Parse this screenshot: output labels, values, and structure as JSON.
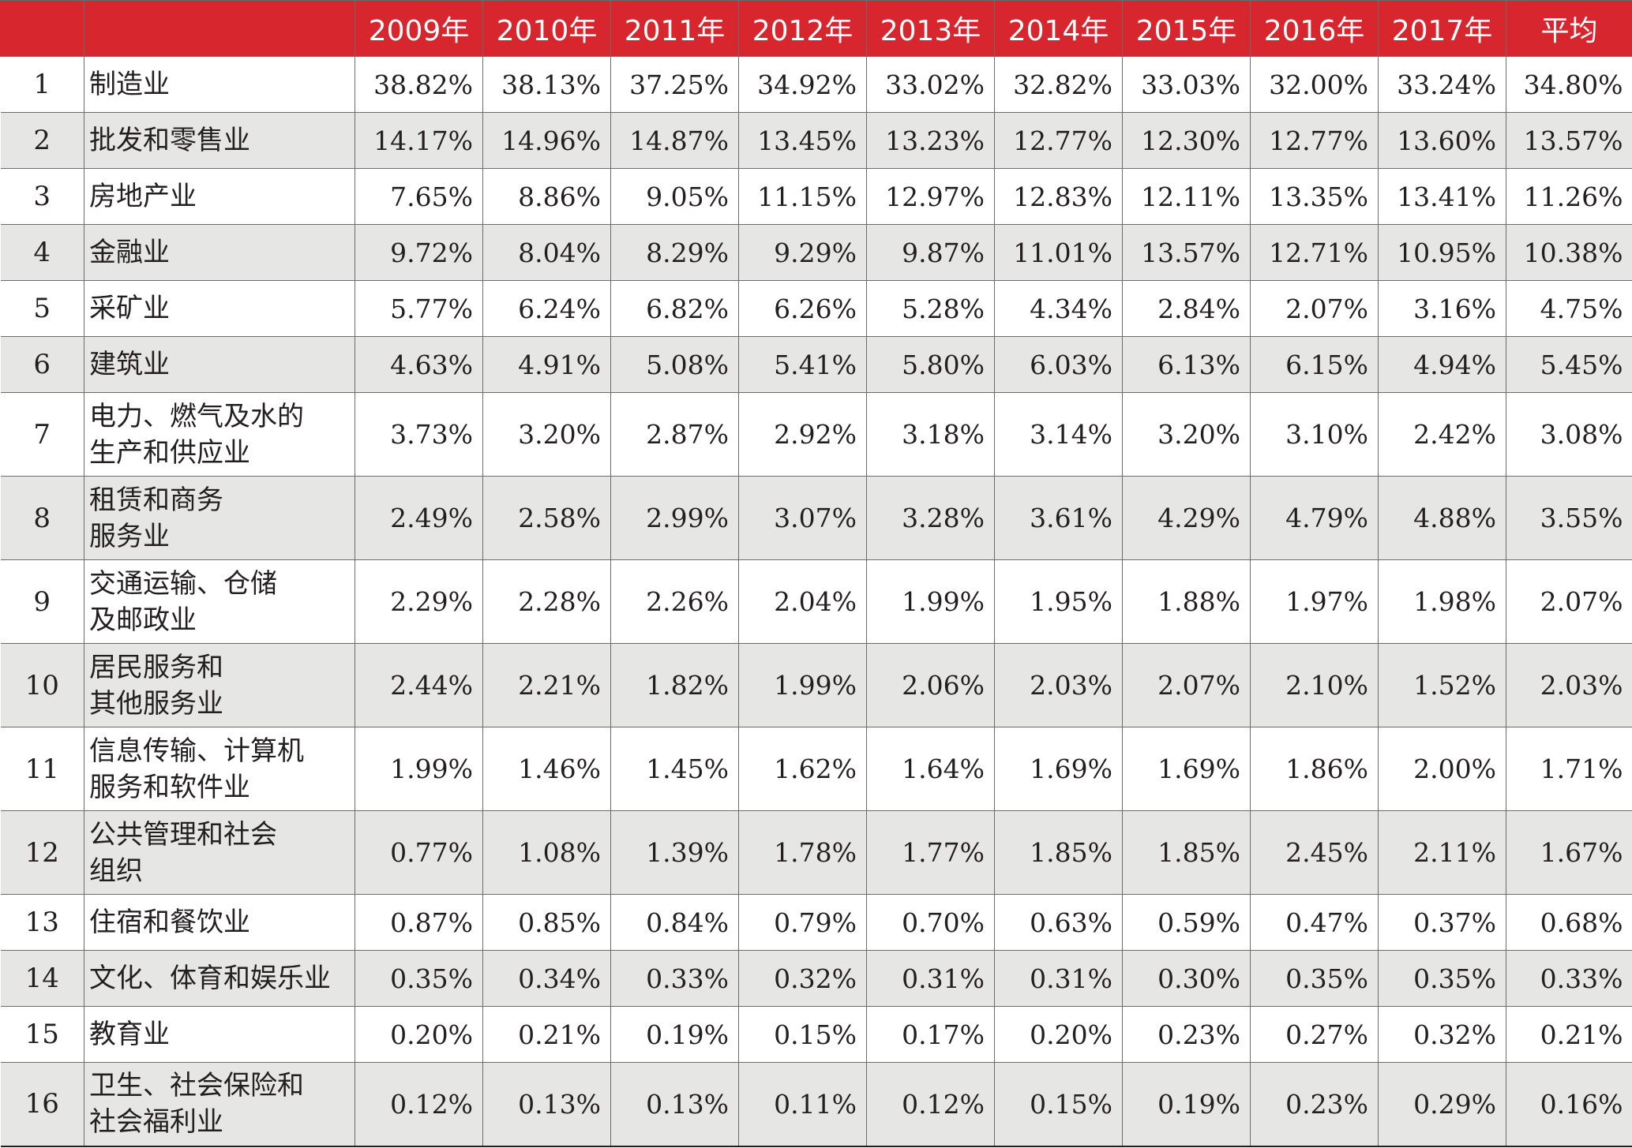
{
  "table": {
    "header": {
      "rank": "",
      "name": "",
      "years": [
        "2009年",
        "2010年",
        "2011年",
        "2012年",
        "2013年",
        "2014年",
        "2015年",
        "2016年",
        "2017年"
      ],
      "average": "平均"
    },
    "rows": [
      {
        "rank": "1",
        "name": [
          "制造业"
        ],
        "values": [
          "38.82%",
          "38.13%",
          "37.25%",
          "34.92%",
          "33.02%",
          "32.82%",
          "33.03%",
          "32.00%",
          "33.24%"
        ],
        "average": "34.80%"
      },
      {
        "rank": "2",
        "name": [
          "批发和零售业"
        ],
        "values": [
          "14.17%",
          "14.96%",
          "14.87%",
          "13.45%",
          "13.23%",
          "12.77%",
          "12.30%",
          "12.77%",
          "13.60%"
        ],
        "average": "13.57%"
      },
      {
        "rank": "3",
        "name": [
          "房地产业"
        ],
        "values": [
          "7.65%",
          "8.86%",
          "9.05%",
          "11.15%",
          "12.97%",
          "12.83%",
          "12.11%",
          "13.35%",
          "13.41%"
        ],
        "average": "11.26%"
      },
      {
        "rank": "4",
        "name": [
          "金融业"
        ],
        "values": [
          "9.72%",
          "8.04%",
          "8.29%",
          "9.29%",
          "9.87%",
          "11.01%",
          "13.57%",
          "12.71%",
          "10.95%"
        ],
        "average": "10.38%"
      },
      {
        "rank": "5",
        "name": [
          "采矿业"
        ],
        "values": [
          "5.77%",
          "6.24%",
          "6.82%",
          "6.26%",
          "5.28%",
          "4.34%",
          "2.84%",
          "2.07%",
          "3.16%"
        ],
        "average": "4.75%"
      },
      {
        "rank": "6",
        "name": [
          "建筑业"
        ],
        "values": [
          "4.63%",
          "4.91%",
          "5.08%",
          "5.41%",
          "5.80%",
          "6.03%",
          "6.13%",
          "6.15%",
          "4.94%"
        ],
        "average": "5.45%"
      },
      {
        "rank": "7",
        "name": [
          "电力、燃气及水的",
          "生产和供应业"
        ],
        "values": [
          "3.73%",
          "3.20%",
          "2.87%",
          "2.92%",
          "3.18%",
          "3.14%",
          "3.20%",
          "3.10%",
          "2.42%"
        ],
        "average": "3.08%"
      },
      {
        "rank": "8",
        "name": [
          "租赁和商务",
          "服务业"
        ],
        "values": [
          "2.49%",
          "2.58%",
          "2.99%",
          "3.07%",
          "3.28%",
          "3.61%",
          "4.29%",
          "4.79%",
          "4.88%"
        ],
        "average": "3.55%"
      },
      {
        "rank": "9",
        "name": [
          "交通运输、仓储",
          "及邮政业"
        ],
        "values": [
          "2.29%",
          "2.28%",
          "2.26%",
          "2.04%",
          "1.99%",
          "1.95%",
          "1.88%",
          "1.97%",
          "1.98%"
        ],
        "average": "2.07%"
      },
      {
        "rank": "10",
        "name": [
          "居民服务和",
          "其他服务业"
        ],
        "values": [
          "2.44%",
          "2.21%",
          "1.82%",
          "1.99%",
          "2.06%",
          "2.03%",
          "2.07%",
          "2.10%",
          "1.52%"
        ],
        "average": "2.03%"
      },
      {
        "rank": "11",
        "name": [
          "信息传输、计算机",
          "服务和软件业"
        ],
        "values": [
          "1.99%",
          "1.46%",
          "1.45%",
          "1.62%",
          "1.64%",
          "1.69%",
          "1.69%",
          "1.86%",
          "2.00%"
        ],
        "average": "1.71%"
      },
      {
        "rank": "12",
        "name": [
          "公共管理和社会",
          "组织"
        ],
        "values": [
          "0.77%",
          "1.08%",
          "1.39%",
          "1.78%",
          "1.77%",
          "1.85%",
          "1.85%",
          "2.45%",
          "2.11%"
        ],
        "average": "1.67%"
      },
      {
        "rank": "13",
        "name": [
          "住宿和餐饮业"
        ],
        "values": [
          "0.87%",
          "0.85%",
          "0.84%",
          "0.79%",
          "0.70%",
          "0.63%",
          "0.59%",
          "0.47%",
          "0.37%"
        ],
        "average": "0.68%"
      },
      {
        "rank": "14",
        "name": [
          "文化、体育和娱乐业"
        ],
        "values": [
          "0.35%",
          "0.34%",
          "0.33%",
          "0.32%",
          "0.31%",
          "0.31%",
          "0.30%",
          "0.35%",
          "0.35%"
        ],
        "average": "0.33%"
      },
      {
        "rank": "15",
        "name": [
          "教育业"
        ],
        "values": [
          "0.20%",
          "0.21%",
          "0.19%",
          "0.15%",
          "0.17%",
          "0.20%",
          "0.23%",
          "0.27%",
          "0.32%"
        ],
        "average": "0.21%"
      },
      {
        "rank": "16",
        "name": [
          "卫生、社会保险和",
          "社会福利业"
        ],
        "values": [
          "0.12%",
          "0.13%",
          "0.13%",
          "0.11%",
          "0.12%",
          "0.15%",
          "0.19%",
          "0.23%",
          "0.29%"
        ],
        "average": "0.16%"
      }
    ]
  },
  "colors": {
    "header_background": "#d7262d",
    "header_text": "#ffffff",
    "shaded_row_background": "#e6e6e5",
    "grid_line": "#6b6b6b"
  }
}
